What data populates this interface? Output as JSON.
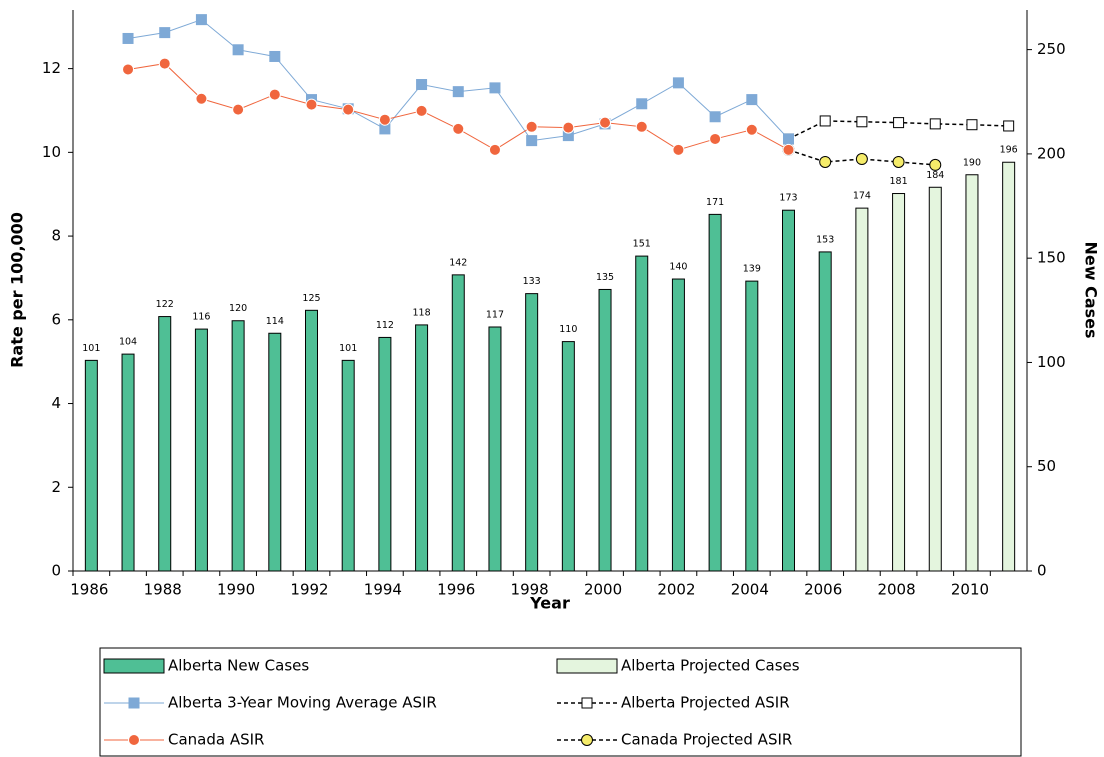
{
  "chart_data": {
    "type": "bar",
    "xlabel": "Year",
    "ylabel": "Rate per 100,000",
    "y2label": "New Cases",
    "categories": [
      "1986",
      null,
      "1988",
      null,
      "1990",
      null,
      "1992",
      null,
      "1994",
      null,
      "1996",
      null,
      "1998",
      null,
      "2000",
      null,
      "2002",
      null,
      "2004",
      null,
      "2006",
      null,
      "2008",
      null,
      "2010",
      null
    ],
    "ylim": [
      0,
      13.4
    ],
    "yticks": [
      0,
      2,
      4,
      6,
      8,
      10,
      12
    ],
    "y2lim": [
      0,
      269
    ],
    "y2ticks": [
      0,
      50,
      100,
      150,
      200,
      250
    ],
    "legend": "bottom",
    "series": [
      {
        "name": "Alberta New Cases",
        "type": "bar",
        "axis": "y2",
        "color": "#4fbf95",
        "edgecolor": "#000000",
        "values": [
          101,
          104,
          122,
          116,
          120,
          114,
          125,
          101,
          112,
          118,
          142,
          117,
          133,
          110,
          135,
          151,
          140,
          171,
          139,
          173,
          153,
          null,
          null,
          null,
          null,
          null
        ]
      },
      {
        "name": "Alberta Projected Cases",
        "type": "bar",
        "axis": "y2",
        "color": "#e4f5de",
        "edgecolor": "#000000",
        "values": [
          null,
          null,
          null,
          null,
          null,
          null,
          null,
          null,
          null,
          null,
          null,
          null,
          null,
          null,
          null,
          null,
          null,
          null,
          null,
          null,
          null,
          174,
          181,
          184,
          190,
          196
        ]
      },
      {
        "name": "Alberta 3-Year Moving Average ASIR",
        "type": "line",
        "color": "#7ea9d6",
        "marker": "square",
        "marker_fill": "#7ea9d6",
        "dashed": false,
        "values": [
          null,
          12.72,
          12.86,
          13.17,
          12.45,
          12.29,
          11.26,
          11.04,
          10.56,
          11.62,
          11.45,
          11.54,
          10.28,
          10.4,
          10.68,
          11.16,
          11.66,
          10.85,
          11.26,
          10.32,
          null,
          null,
          null,
          null,
          null,
          null
        ]
      },
      {
        "name": "Alberta Projected ASIR",
        "type": "line",
        "color": "#000000",
        "marker": "square",
        "marker_fill": "#ffffff",
        "dashed": true,
        "values": [
          null,
          null,
          null,
          null,
          null,
          null,
          null,
          null,
          null,
          null,
          null,
          null,
          null,
          null,
          null,
          null,
          null,
          null,
          null,
          10.32,
          10.75,
          10.73,
          10.71,
          10.68,
          10.66,
          10.63
        ]
      },
      {
        "name": "Canada ASIR",
        "type": "line",
        "color": "#f0663e",
        "marker": "circle",
        "marker_fill": "#f0663e",
        "dashed": false,
        "values": [
          null,
          11.98,
          12.12,
          11.28,
          11.02,
          11.38,
          11.14,
          11.02,
          10.78,
          10.99,
          10.56,
          10.06,
          10.61,
          10.59,
          10.71,
          10.61,
          10.06,
          10.32,
          10.54,
          10.06,
          null,
          null,
          null,
          null,
          null,
          null
        ]
      },
      {
        "name": "Canada Projected ASIR",
        "type": "line",
        "color": "#000000",
        "marker": "circle",
        "marker_fill": "#f5ec6a",
        "dashed": true,
        "values": [
          null,
          null,
          null,
          null,
          null,
          null,
          null,
          null,
          null,
          null,
          null,
          null,
          null,
          null,
          null,
          null,
          null,
          null,
          null,
          10.06,
          9.77,
          9.84,
          9.77,
          9.7,
          null,
          null
        ]
      }
    ]
  }
}
